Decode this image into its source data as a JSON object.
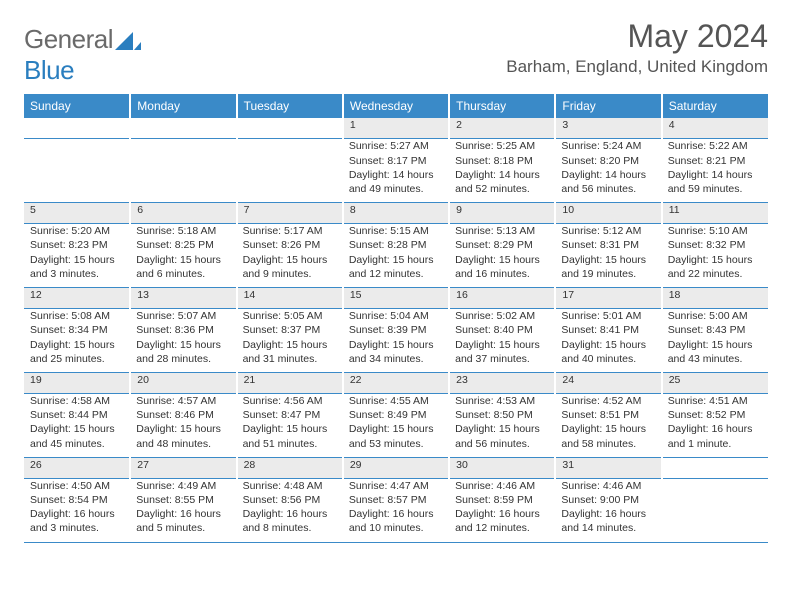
{
  "logo": {
    "general": "General",
    "blue": "Blue"
  },
  "title": "May 2024",
  "location": "Barham, England, United Kingdom",
  "colors": {
    "header_bg": "#3a8ac8",
    "header_text": "#ffffff",
    "daynum_bg": "#ebebeb",
    "rule": "#3a8ac8",
    "text": "#333333",
    "logo_gray": "#6a6a6a",
    "logo_blue": "#2a7ebf"
  },
  "day_headers": [
    "Sunday",
    "Monday",
    "Tuesday",
    "Wednesday",
    "Thursday",
    "Friday",
    "Saturday"
  ],
  "weeks": [
    [
      null,
      null,
      null,
      {
        "n": "1",
        "sunrise": "5:27 AM",
        "sunset": "8:17 PM",
        "dl1": "Daylight: 14 hours",
        "dl2": "and 49 minutes."
      },
      {
        "n": "2",
        "sunrise": "5:25 AM",
        "sunset": "8:18 PM",
        "dl1": "Daylight: 14 hours",
        "dl2": "and 52 minutes."
      },
      {
        "n": "3",
        "sunrise": "5:24 AM",
        "sunset": "8:20 PM",
        "dl1": "Daylight: 14 hours",
        "dl2": "and 56 minutes."
      },
      {
        "n": "4",
        "sunrise": "5:22 AM",
        "sunset": "8:21 PM",
        "dl1": "Daylight: 14 hours",
        "dl2": "and 59 minutes."
      }
    ],
    [
      {
        "n": "5",
        "sunrise": "5:20 AM",
        "sunset": "8:23 PM",
        "dl1": "Daylight: 15 hours",
        "dl2": "and 3 minutes."
      },
      {
        "n": "6",
        "sunrise": "5:18 AM",
        "sunset": "8:25 PM",
        "dl1": "Daylight: 15 hours",
        "dl2": "and 6 minutes."
      },
      {
        "n": "7",
        "sunrise": "5:17 AM",
        "sunset": "8:26 PM",
        "dl1": "Daylight: 15 hours",
        "dl2": "and 9 minutes."
      },
      {
        "n": "8",
        "sunrise": "5:15 AM",
        "sunset": "8:28 PM",
        "dl1": "Daylight: 15 hours",
        "dl2": "and 12 minutes."
      },
      {
        "n": "9",
        "sunrise": "5:13 AM",
        "sunset": "8:29 PM",
        "dl1": "Daylight: 15 hours",
        "dl2": "and 16 minutes."
      },
      {
        "n": "10",
        "sunrise": "5:12 AM",
        "sunset": "8:31 PM",
        "dl1": "Daylight: 15 hours",
        "dl2": "and 19 minutes."
      },
      {
        "n": "11",
        "sunrise": "5:10 AM",
        "sunset": "8:32 PM",
        "dl1": "Daylight: 15 hours",
        "dl2": "and 22 minutes."
      }
    ],
    [
      {
        "n": "12",
        "sunrise": "5:08 AM",
        "sunset": "8:34 PM",
        "dl1": "Daylight: 15 hours",
        "dl2": "and 25 minutes."
      },
      {
        "n": "13",
        "sunrise": "5:07 AM",
        "sunset": "8:36 PM",
        "dl1": "Daylight: 15 hours",
        "dl2": "and 28 minutes."
      },
      {
        "n": "14",
        "sunrise": "5:05 AM",
        "sunset": "8:37 PM",
        "dl1": "Daylight: 15 hours",
        "dl2": "and 31 minutes."
      },
      {
        "n": "15",
        "sunrise": "5:04 AM",
        "sunset": "8:39 PM",
        "dl1": "Daylight: 15 hours",
        "dl2": "and 34 minutes."
      },
      {
        "n": "16",
        "sunrise": "5:02 AM",
        "sunset": "8:40 PM",
        "dl1": "Daylight: 15 hours",
        "dl2": "and 37 minutes."
      },
      {
        "n": "17",
        "sunrise": "5:01 AM",
        "sunset": "8:41 PM",
        "dl1": "Daylight: 15 hours",
        "dl2": "and 40 minutes."
      },
      {
        "n": "18",
        "sunrise": "5:00 AM",
        "sunset": "8:43 PM",
        "dl1": "Daylight: 15 hours",
        "dl2": "and 43 minutes."
      }
    ],
    [
      {
        "n": "19",
        "sunrise": "4:58 AM",
        "sunset": "8:44 PM",
        "dl1": "Daylight: 15 hours",
        "dl2": "and 45 minutes."
      },
      {
        "n": "20",
        "sunrise": "4:57 AM",
        "sunset": "8:46 PM",
        "dl1": "Daylight: 15 hours",
        "dl2": "and 48 minutes."
      },
      {
        "n": "21",
        "sunrise": "4:56 AM",
        "sunset": "8:47 PM",
        "dl1": "Daylight: 15 hours",
        "dl2": "and 51 minutes."
      },
      {
        "n": "22",
        "sunrise": "4:55 AM",
        "sunset": "8:49 PM",
        "dl1": "Daylight: 15 hours",
        "dl2": "and 53 minutes."
      },
      {
        "n": "23",
        "sunrise": "4:53 AM",
        "sunset": "8:50 PM",
        "dl1": "Daylight: 15 hours",
        "dl2": "and 56 minutes."
      },
      {
        "n": "24",
        "sunrise": "4:52 AM",
        "sunset": "8:51 PM",
        "dl1": "Daylight: 15 hours",
        "dl2": "and 58 minutes."
      },
      {
        "n": "25",
        "sunrise": "4:51 AM",
        "sunset": "8:52 PM",
        "dl1": "Daylight: 16 hours",
        "dl2": "and 1 minute."
      }
    ],
    [
      {
        "n": "26",
        "sunrise": "4:50 AM",
        "sunset": "8:54 PM",
        "dl1": "Daylight: 16 hours",
        "dl2": "and 3 minutes."
      },
      {
        "n": "27",
        "sunrise": "4:49 AM",
        "sunset": "8:55 PM",
        "dl1": "Daylight: 16 hours",
        "dl2": "and 5 minutes."
      },
      {
        "n": "28",
        "sunrise": "4:48 AM",
        "sunset": "8:56 PM",
        "dl1": "Daylight: 16 hours",
        "dl2": "and 8 minutes."
      },
      {
        "n": "29",
        "sunrise": "4:47 AM",
        "sunset": "8:57 PM",
        "dl1": "Daylight: 16 hours",
        "dl2": "and 10 minutes."
      },
      {
        "n": "30",
        "sunrise": "4:46 AM",
        "sunset": "8:59 PM",
        "dl1": "Daylight: 16 hours",
        "dl2": "and 12 minutes."
      },
      {
        "n": "31",
        "sunrise": "4:46 AM",
        "sunset": "9:00 PM",
        "dl1": "Daylight: 16 hours",
        "dl2": "and 14 minutes."
      },
      null
    ]
  ],
  "labels": {
    "sunrise": "Sunrise: ",
    "sunset": "Sunset: "
  }
}
